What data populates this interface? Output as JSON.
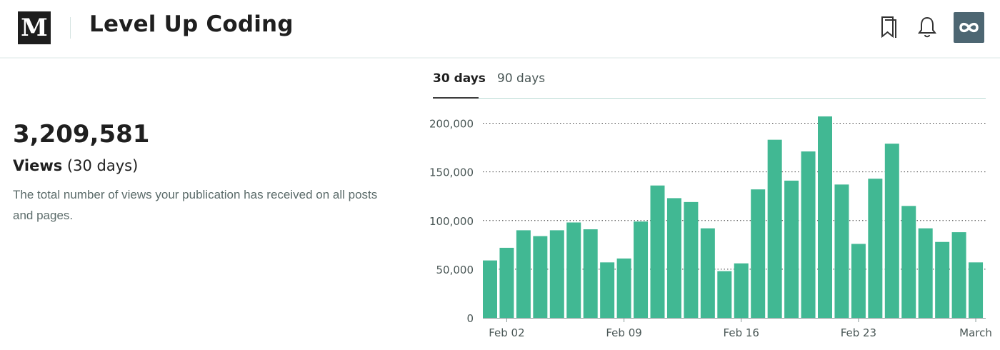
{
  "header": {
    "logo_letter": "M",
    "publication_title": "Level Up Coding",
    "icons": [
      "bookmark-icon",
      "bell-icon",
      "avatar-infinity-icon"
    ]
  },
  "stats": {
    "views_number": "3,209,581",
    "views_label_bold": "Views",
    "views_label_period": "(30 days)",
    "description": "The total number of views your publication has received on all posts and pages."
  },
  "tabs": [
    {
      "label": "30 days",
      "active": true
    },
    {
      "label": "90 days",
      "active": false
    }
  ],
  "colors": {
    "bar": "#41b893",
    "accent_rule": "#b9dbd4",
    "text_muted": "#5b6b6a"
  },
  "chart_data": {
    "type": "bar",
    "y_tick_labels": [
      "0",
      "50,000",
      "100,000",
      "150,000",
      "200,000"
    ],
    "x_tick_labels": [
      "Feb 02",
      "Feb 09",
      "Feb 16",
      "Feb 23",
      "March"
    ],
    "ylim": [
      0,
      200000
    ],
    "grid": "dotted horizontal",
    "values": [
      59000,
      72000,
      90000,
      84000,
      90000,
      98000,
      91000,
      57000,
      61000,
      99000,
      136000,
      123000,
      119000,
      92000,
      48000,
      56000,
      132000,
      183000,
      141000,
      171000,
      207000,
      137000,
      76000,
      143000,
      179000,
      115000,
      92000,
      78000,
      88000,
      57000
    ]
  }
}
